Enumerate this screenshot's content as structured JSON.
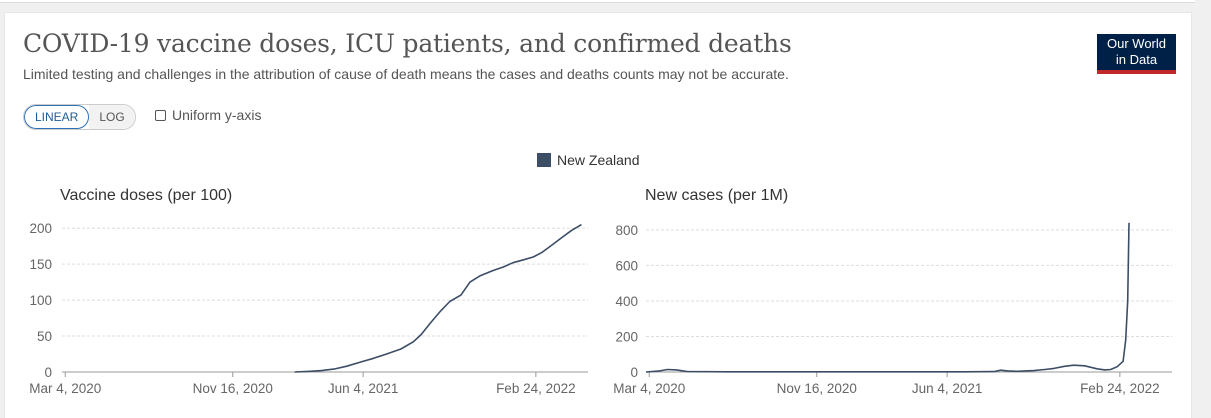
{
  "header": {
    "title": "COVID-19 vaccine doses, ICU patients, and confirmed deaths",
    "subtitle": "Limited testing and challenges in the attribution of cause of death means the cases and deaths counts may not be accurate.",
    "logo_line1": "Our World",
    "logo_line2": "in Data"
  },
  "controls": {
    "linear_label": "LINEAR",
    "log_label": "LOG",
    "uniform_label": "Uniform y-axis",
    "active_scale": "linear"
  },
  "legend": {
    "label": "New Zealand",
    "color": "#3c4e66"
  },
  "chart_data": [
    {
      "type": "line",
      "title": "Vaccine doses (per 100)",
      "x_ticks": [
        "Mar 4, 2020",
        "Nov 16, 2020",
        "Jun 4, 2021",
        "Feb 24, 2022"
      ],
      "y_ticks": [
        0,
        50,
        100,
        150,
        200
      ],
      "ylim": [
        0,
        210
      ],
      "xlim": [
        "2020-02-28",
        "2022-05-15"
      ],
      "grid": true,
      "series": [
        {
          "name": "New Zealand",
          "color": "#3c4e66",
          "x": [
            "2021-02-19",
            "2021-03-15",
            "2021-04-01",
            "2021-04-20",
            "2021-05-10",
            "2021-06-01",
            "2021-06-20",
            "2021-07-10",
            "2021-08-01",
            "2021-08-20",
            "2021-09-01",
            "2021-09-15",
            "2021-10-01",
            "2021-10-15",
            "2021-11-01",
            "2021-11-15",
            "2021-12-01",
            "2021-12-20",
            "2022-01-05",
            "2022-01-20",
            "2022-02-05",
            "2022-02-20",
            "2022-03-05",
            "2022-03-20",
            "2022-04-05",
            "2022-04-20",
            "2022-05-05"
          ],
          "y": [
            0,
            1,
            2,
            4,
            8,
            14,
            19,
            25,
            32,
            42,
            52,
            68,
            85,
            98,
            107,
            125,
            134,
            141,
            146,
            152,
            156,
            160,
            166,
            176,
            187,
            197,
            205
          ]
        }
      ]
    },
    {
      "type": "line",
      "title": "New cases (per 1M)",
      "x_ticks": [
        "Mar 4, 2020",
        "Nov 16, 2020",
        "Jun 4, 2021",
        "Feb 24, 2022"
      ],
      "y_ticks": [
        0,
        200,
        400,
        600,
        800
      ],
      "ylim": [
        0,
        850
      ],
      "xlim": [
        "2020-02-28",
        "2022-05-15"
      ],
      "grid": true,
      "series": [
        {
          "name": "New Zealand",
          "color": "#3c4e66",
          "x": [
            "2020-02-28",
            "2020-03-20",
            "2020-04-01",
            "2020-04-15",
            "2020-05-01",
            "2020-07-01",
            "2020-10-01",
            "2021-01-01",
            "2021-04-01",
            "2021-07-01",
            "2021-08-15",
            "2021-08-25",
            "2021-09-05",
            "2021-09-20",
            "2021-10-15",
            "2021-11-01",
            "2021-11-15",
            "2021-12-01",
            "2021-12-15",
            "2022-01-01",
            "2022-01-20",
            "2022-02-01",
            "2022-02-10",
            "2022-02-20",
            "2022-03-01",
            "2022-03-05",
            "2022-03-08",
            "2022-03-10"
          ],
          "y": [
            0,
            6,
            14,
            12,
            3,
            1,
            1,
            1,
            1,
            1,
            2,
            10,
            6,
            4,
            8,
            14,
            20,
            32,
            38,
            35,
            18,
            12,
            14,
            30,
            60,
            180,
            400,
            840
          ]
        }
      ]
    }
  ]
}
